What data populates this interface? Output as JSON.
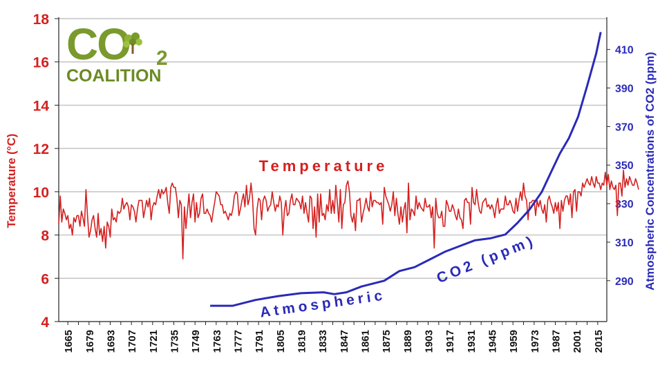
{
  "chart_data": {
    "type": "line",
    "title": "",
    "x_range": [
      1659,
      2021
    ],
    "x_ticks": [
      1665,
      1679,
      1693,
      1707,
      1721,
      1735,
      1749,
      1763,
      1777,
      1791,
      1805,
      1819,
      1833,
      1847,
      1861,
      1875,
      1889,
      1903,
      1917,
      1931,
      1945,
      1959,
      1973,
      1987,
      2001,
      2015
    ],
    "left_axis": {
      "label": "Temperature (°C)",
      "ylim": [
        4,
        18
      ],
      "ticks": [
        4,
        6,
        8,
        10,
        12,
        14,
        16,
        18
      ],
      "color": "#d42020"
    },
    "right_axis": {
      "label": "Atmospheric Concentrations of CO2 (ppm)",
      "ylim": [
        268.8,
        426
      ],
      "ticks": [
        290,
        310,
        330,
        350,
        370,
        390,
        410
      ],
      "color": "#2a2ab8"
    },
    "grid": true,
    "series": [
      {
        "name": "Temperature",
        "axis": "left",
        "color": "#d42020",
        "x_start": 1659,
        "x_step": 1,
        "values": [
          8.5,
          9.8,
          8.6,
          9.2,
          9.0,
          8.7,
          8.9,
          8.3,
          8.5,
          8.0,
          8.8,
          8.6,
          8.9,
          8.9,
          8.4,
          9.1,
          8.8,
          8.4,
          10.1,
          8.9,
          7.9,
          8.2,
          8.7,
          8.9,
          8.3,
          7.9,
          9.0,
          8.0,
          8.3,
          7.7,
          8.4,
          7.4,
          8.6,
          8.4,
          7.9,
          9.2,
          8.7,
          8.8,
          8.6,
          9.1,
          9.0,
          9.1,
          9.7,
          9.2,
          9.4,
          9.5,
          9.3,
          8.7,
          9.4,
          9.3,
          9.1,
          8.6,
          9.2,
          9.6,
          9.6,
          9.6,
          8.8,
          9.2,
          9.6,
          9.3,
          9.7,
          8.7,
          9.3,
          9.5,
          9.4,
          9.8,
          10.1,
          9.7,
          10.1,
          9.9,
          10.0,
          10.2,
          9.5,
          9.0,
          10.2,
          10.4,
          10.2,
          10.2,
          9.7,
          8.8,
          9.6,
          9.4,
          6.9,
          9.3,
          8.3,
          9.1,
          9.9,
          8.8,
          9.5,
          9.9,
          8.6,
          9.5,
          8.8,
          9.0,
          9.7,
          9.9,
          9.0,
          9.0,
          9.2,
          9.0,
          8.9,
          8.6,
          9.1,
          9.5,
          10.0,
          9.9,
          9.8,
          9.4,
          9.4,
          9.0,
          9.1,
          8.9,
          8.7,
          9.0,
          8.9,
          9.2,
          9.8,
          10.0,
          9.9,
          8.9,
          9.2,
          9.6,
          9.9,
          9.3,
          10.3,
          9.4,
          9.7,
          10.4,
          9.7,
          8.3,
          8.0,
          9.2,
          9.7,
          9.6,
          8.7,
          9.6,
          9.8,
          9.6,
          9.1,
          9.3,
          9.4,
          10.0,
          9.5,
          9.1,
          9.4,
          9.3,
          9.8,
          9.5,
          8.0,
          9.1,
          9.6,
          8.9,
          9.0,
          9.6,
          9.9,
          9.4,
          9.4,
          9.7,
          9.6,
          9.5,
          9.2,
          9.8,
          9.0,
          9.5,
          9.0,
          8.6,
          9.8,
          9.7,
          8.3,
          9.3,
          7.9,
          9.9,
          8.6,
          9.9,
          8.9,
          9.0,
          8.7,
          9.4,
          9.1,
          10.1,
          9.0,
          9.6,
          9.0,
          10.3,
          9.5,
          8.6,
          10.1,
          8.3,
          9.4,
          9.5,
          10.3,
          10.5,
          10.0,
          8.9,
          8.6,
          9.0,
          8.2,
          9.6,
          9.6,
          9.7,
          8.6,
          9.0,
          9.3,
          9.7,
          9.3,
          9.1,
          10.0,
          9.3,
          9.6,
          9.6,
          9.5,
          9.5,
          9.4,
          9.5,
          8.5,
          10.2,
          9.8,
          9.6,
          9.4,
          9.1,
          9.4,
          10.0,
          8.9,
          9.7,
          9.0,
          8.5,
          9.3,
          8.6,
          9.2,
          9.5,
          8.1,
          10.4,
          8.7,
          9.2,
          9.1,
          8.9,
          9.8,
          9.2,
          9.5,
          9.3,
          9.2,
          9.1,
          9.7,
          9.3,
          9.3,
          9.4,
          8.8,
          9.3,
          7.4,
          9.7,
          9.0,
          8.8,
          8.8,
          9.1,
          8.4,
          8.4,
          9.6,
          9.4,
          9.1,
          9.1,
          9.4,
          9.2,
          8.9,
          8.7,
          9.2,
          8.8,
          8.7,
          8.3,
          9.6,
          9.7,
          9.5,
          9.5,
          8.5,
          10.2,
          9.5,
          9.4,
          10.1,
          9.5,
          9.1,
          9.0,
          9.5,
          9.6,
          9.7,
          9.3,
          9.4,
          9.2,
          9.4,
          9.2,
          8.8,
          9.4,
          9.7,
          9.0,
          9.2,
          9.2,
          9.2,
          9.8,
          9.4,
          9.4,
          9.6,
          9.4,
          9.1,
          9.0,
          9.7,
          9.1,
          9.6,
          10.0,
          9.6,
          10.4,
          9.8,
          9.6,
          8.7,
          9.5,
          9.5,
          9.6,
          9.6,
          8.9,
          9.6,
          9.3,
          9.6,
          9.2,
          9.0,
          9.4,
          8.6,
          9.6,
          9.8,
          9.5,
          9.3,
          9.0,
          9.5,
          9.1,
          9.5,
          8.3,
          9.6,
          9.1,
          9.6,
          9.8,
          9.8,
          9.4,
          9.9,
          8.8,
          10.0,
          10.1,
          9.1,
          10.0,
          10.0,
          9.8,
          10.4,
          10.2,
          10.4,
          10.6,
          10.4,
          10.3,
          10.7,
          10.4,
          10.2,
          10.7,
          10.4,
          10.4,
          10.1,
          10.4,
          10.3,
          10.9,
          10.3,
          10.8,
          10.1,
          10.5,
          10.2,
          10.1,
          10.3,
          8.9,
          10.4,
          10.4,
          9.8,
          11.0,
          10.2,
          10.6,
          10.3,
          10.7,
          10.5,
          10.3,
          10.3,
          10.6,
          10.4,
          10.1
        ]
      },
      {
        "name": "Atmospheric CO2 (ppm)",
        "axis": "right",
        "color": "#2a2ab8",
        "x": [
          1759,
          1774,
          1789,
          1804,
          1819,
          1834,
          1841,
          1849,
          1859,
          1874,
          1884,
          1894,
          1904,
          1914,
          1924,
          1934,
          1944,
          1954,
          1962,
          1970,
          1978,
          1984,
          1990,
          1996,
          2002,
          2008,
          2014,
          2017
        ],
        "values": [
          277,
          277,
          280,
          282,
          283.5,
          284,
          283,
          284,
          287,
          290,
          295,
          297,
          301,
          305,
          308,
          311,
          312,
          314,
          320,
          327,
          336,
          346,
          356,
          364,
          375,
          391,
          408,
          419
        ]
      }
    ],
    "annotations": {
      "temperature": "Temperature",
      "co2_part1": "Atmospheric",
      "co2_part2": "CO2 (ppm)"
    }
  },
  "logo": {
    "main": "CO",
    "subscript": "2",
    "name": "COALITION"
  }
}
